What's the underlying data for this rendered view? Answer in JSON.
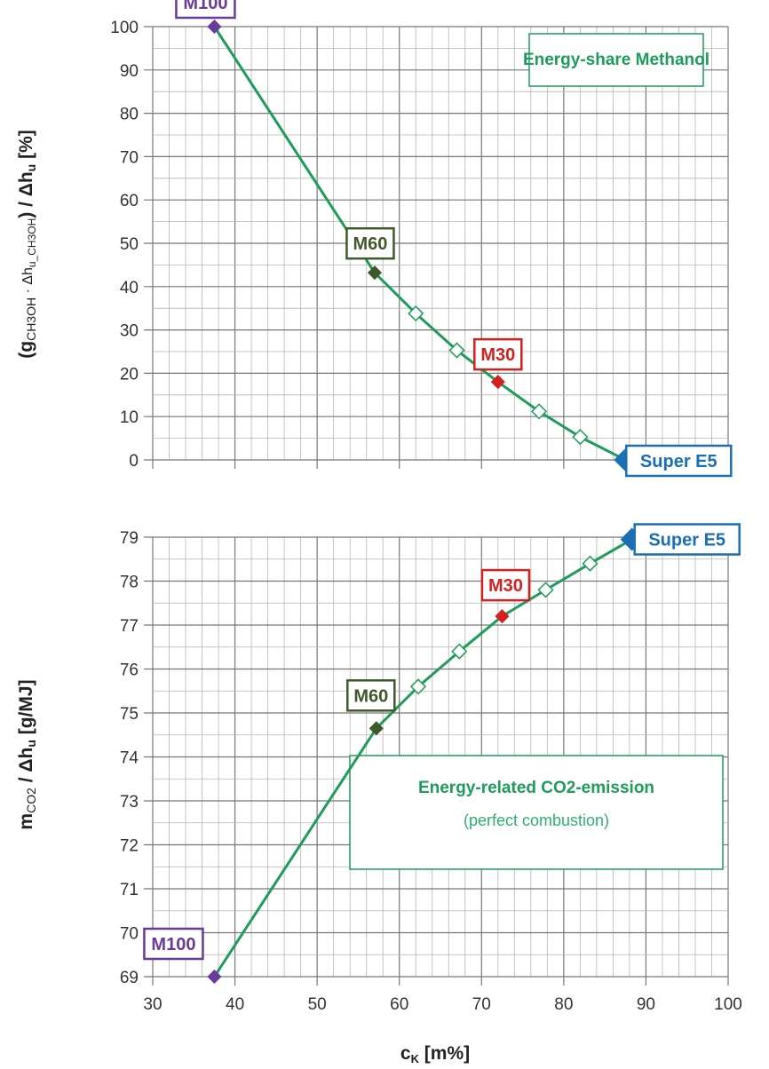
{
  "colors": {
    "line": "#1e9c5a",
    "M100": "#6a3a9a",
    "M60": "#3f5a2a",
    "M30": "#d42020",
    "Super E5": "#1a6fb5",
    "grid_major": "#777777",
    "grid_minor": "#b5b5b5"
  },
  "chart_data": [
    {
      "type": "line",
      "title": "Energy-share Methanol",
      "xlabel": "",
      "ylabel_main": "(g",
      "ylabel_sub1": "CH3OH",
      "ylabel_mid": " · Δh",
      "ylabel_sub2": "u_CH3OH",
      "ylabel_mid2": ") / Δh",
      "ylabel_sub3": "u",
      "ylabel_end": " [%]",
      "xlim": [
        30,
        100
      ],
      "ylim": [
        0,
        100
      ],
      "y_ticks": [
        0,
        10,
        20,
        30,
        40,
        50,
        60,
        70,
        80,
        90,
        100
      ],
      "grid": true,
      "points": [
        {
          "x": 37.5,
          "y": 100,
          "label": "M100",
          "marker": "filled"
        },
        {
          "x": 57,
          "y": 43.2,
          "label": "M60",
          "marker": "filled"
        },
        {
          "x": 62,
          "y": 33.8,
          "label": "",
          "marker": "open"
        },
        {
          "x": 67,
          "y": 25.3,
          "label": "",
          "marker": "open"
        },
        {
          "x": 72,
          "y": 18,
          "label": "M30",
          "marker": "filled"
        },
        {
          "x": 77,
          "y": 11.2,
          "label": "",
          "marker": "open"
        },
        {
          "x": 82,
          "y": 5.3,
          "label": "",
          "marker": "open"
        },
        {
          "x": 87.5,
          "y": 0,
          "label": "Super E5",
          "marker": "filled-large"
        }
      ]
    },
    {
      "type": "line",
      "title": "Energy-related CO2-emission",
      "subtitle": "(perfect combustion)",
      "xlabel_main": "c",
      "xlabel_sub": "K",
      "xlabel_end": " [m%]",
      "ylabel_main": "m",
      "ylabel_sub1": "CO2",
      "ylabel_mid": " / Δh",
      "ylabel_sub2": "u",
      "ylabel_end": " [g/MJ]",
      "xlim": [
        30,
        100
      ],
      "ylim": [
        69,
        79
      ],
      "x_ticks": [
        30,
        40,
        50,
        60,
        70,
        80,
        90,
        100
      ],
      "y_ticks": [
        69,
        70,
        71,
        72,
        73,
        74,
        75,
        76,
        77,
        78,
        79
      ],
      "grid": true,
      "points": [
        {
          "x": 37.5,
          "y": 69.0,
          "label": "M100",
          "marker": "filled"
        },
        {
          "x": 57.2,
          "y": 74.65,
          "label": "M60",
          "marker": "filled"
        },
        {
          "x": 62.3,
          "y": 75.6,
          "label": "",
          "marker": "open"
        },
        {
          "x": 67.3,
          "y": 76.4,
          "label": "",
          "marker": "open"
        },
        {
          "x": 72.5,
          "y": 77.2,
          "label": "M30",
          "marker": "filled"
        },
        {
          "x": 77.8,
          "y": 77.8,
          "label": "",
          "marker": "open"
        },
        {
          "x": 83.2,
          "y": 78.4,
          "label": "",
          "marker": "open"
        },
        {
          "x": 88.3,
          "y": 78.95,
          "label": "Super E5",
          "marker": "filled-large"
        }
      ]
    }
  ]
}
